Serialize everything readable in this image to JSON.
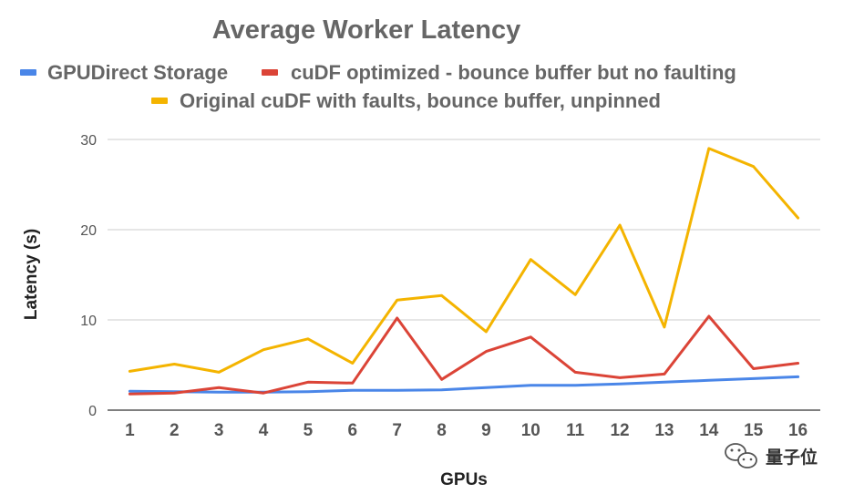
{
  "chart_data": {
    "type": "line",
    "title": "Average Worker Latency",
    "xlabel": "GPUs",
    "ylabel": "Latency (s)",
    "x": [
      "1",
      "2",
      "3",
      "4",
      "5",
      "6",
      "7",
      "8",
      "9",
      "10",
      "11",
      "12",
      "13",
      "14",
      "15",
      "16"
    ],
    "ylim": [
      0,
      30
    ],
    "yticks": [
      0,
      10,
      20,
      30
    ],
    "grid": true,
    "legend_position": "top",
    "series": [
      {
        "name": "GPUDirect Storage",
        "color": "#4a86e8",
        "values": [
          2.1,
          2.05,
          2.0,
          2.0,
          2.05,
          2.2,
          2.2,
          2.25,
          2.5,
          2.75,
          2.75,
          2.9,
          3.1,
          3.3,
          3.5,
          3.7
        ]
      },
      {
        "name": "cuDF optimized - bounce buffer but no faulting",
        "color": "#db4437",
        "values": [
          1.8,
          1.9,
          2.5,
          1.9,
          3.1,
          3.0,
          10.2,
          3.4,
          6.5,
          8.1,
          4.2,
          3.6,
          4.0,
          10.4,
          4.6,
          5.2
        ]
      },
      {
        "name": "Original cuDF with faults, bounce buffer, unpinned",
        "color": "#f4b400",
        "values": [
          4.3,
          5.1,
          4.2,
          6.7,
          7.9,
          5.2,
          12.2,
          12.7,
          8.7,
          16.7,
          12.8,
          20.5,
          9.2,
          29.0,
          27.0,
          21.3
        ]
      }
    ]
  },
  "watermark": {
    "text": "量子位",
    "icon": "wechat-icon"
  }
}
